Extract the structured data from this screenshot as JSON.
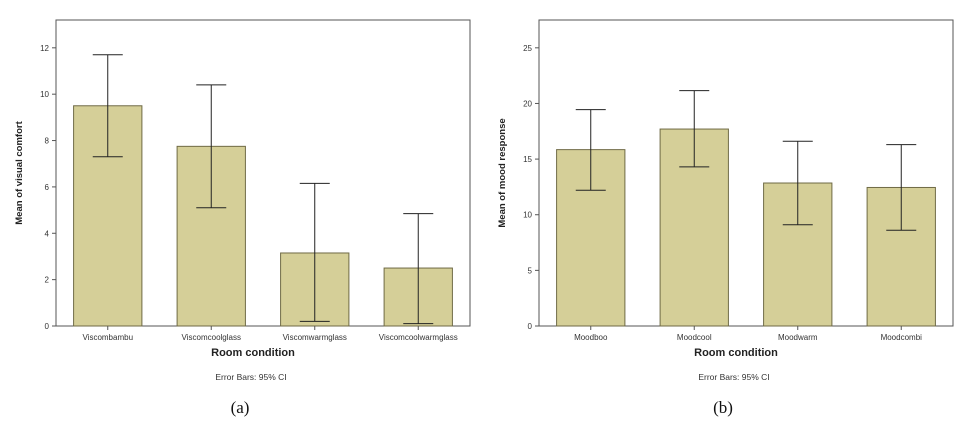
{
  "chart_data": [
    {
      "type": "bar",
      "caption": "(a)",
      "xlabel": "Room condition",
      "ylabel": "Mean of visual comfort",
      "note": "Error Bars: 95% CI",
      "categories": [
        "Viscombambu",
        "Viscomcoolglass",
        "Viscomwarmglass",
        "Viscomcoolwarmglass"
      ],
      "values": [
        9.5,
        7.75,
        3.15,
        2.5
      ],
      "ci_low": [
        7.3,
        5.1,
        0.2,
        0.1
      ],
      "ci_high": [
        11.7,
        10.4,
        6.15,
        4.85
      ],
      "ylim": [
        0,
        13.2
      ],
      "yticks": [
        0,
        2,
        4,
        6,
        8,
        10,
        12
      ],
      "bar_color": "#d5cf98",
      "grid": false
    },
    {
      "type": "bar",
      "caption": "(b)",
      "xlabel": "Room condition",
      "ylabel": "Mean of mood response",
      "note": "Error Bars: 95% CI",
      "categories": [
        "Moodboo",
        "Moodcool",
        "Moodwarm",
        "Moodcombi"
      ],
      "values": [
        15.85,
        17.7,
        12.85,
        12.45
      ],
      "ci_low": [
        12.2,
        14.3,
        9.1,
        8.6
      ],
      "ci_high": [
        19.45,
        21.15,
        16.6,
        16.3
      ],
      "ylim": [
        0,
        27.5
      ],
      "yticks": [
        0,
        5,
        10,
        15,
        20,
        25
      ],
      "bar_color": "#d5cf98",
      "grid": false
    }
  ]
}
